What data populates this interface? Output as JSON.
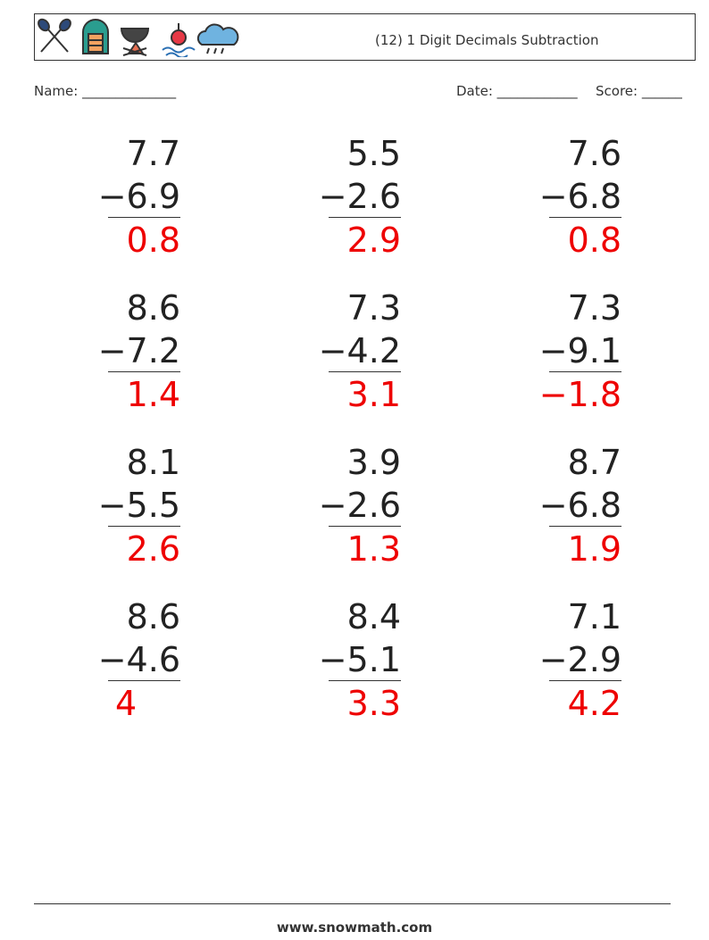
{
  "header": {
    "title": "(12) 1 Digit Decimals Subtraction",
    "name": "Name: ______________",
    "date": "Date: ____________",
    "score": "Score: ______"
  },
  "problems": [
    {
      "top": "7.7",
      "bottom": "−6.9",
      "answer": "0.8"
    },
    {
      "top": "5.5",
      "bottom": "−2.6",
      "answer": "2.9"
    },
    {
      "top": "7.6",
      "bottom": "−6.8",
      "answer": "0.8"
    },
    {
      "top": "8.6",
      "bottom": "−7.2",
      "answer": "1.4"
    },
    {
      "top": "7.3",
      "bottom": "−4.2",
      "answer": "3.1"
    },
    {
      "top": "7.3",
      "bottom": "−9.1",
      "answer": "−1.8"
    },
    {
      "top": "8.1",
      "bottom": "−5.5",
      "answer": "2.6"
    },
    {
      "top": "3.9",
      "bottom": "−2.6",
      "answer": "1.3"
    },
    {
      "top": "8.7",
      "bottom": "−6.8",
      "answer": "1.9"
    },
    {
      "top": "8.6",
      "bottom": "−4.6",
      "answer": "4"
    },
    {
      "top": "8.4",
      "bottom": "−5.1",
      "answer": "3.3"
    },
    {
      "top": "7.1",
      "bottom": "−2.9",
      "answer": "4.2"
    }
  ],
  "footer": "www.snowmath.com"
}
